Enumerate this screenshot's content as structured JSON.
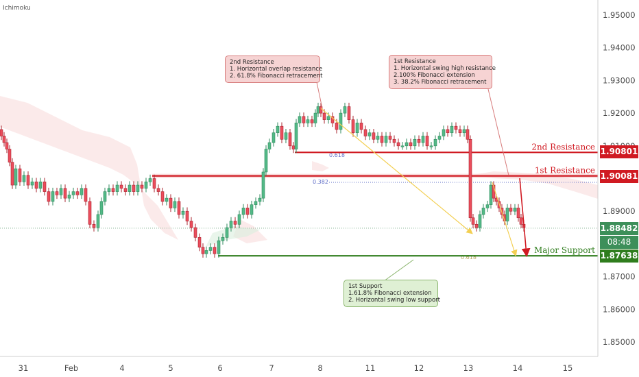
{
  "indicator_label": "Ichimoku",
  "chart_data": {
    "type": "candlestick",
    "y_axis": {
      "ticks": [
        "1.95000",
        "1.94000",
        "1.93000",
        "1.92000",
        "1.91000",
        "1.89000",
        "1.87000",
        "1.86000",
        "1.85000"
      ],
      "range": [
        1.844,
        1.955
      ]
    },
    "x_axis": {
      "ticks": [
        "31",
        "Feb",
        "4",
        "5",
        "6",
        "7",
        "8",
        "11",
        "12",
        "13",
        "14",
        "15"
      ]
    },
    "levels": [
      {
        "name": "2nd Resistance",
        "price": "1.90801",
        "value": 1.90801,
        "color": "#d01a22"
      },
      {
        "name": "1st Resistance",
        "price": "1.90081",
        "value": 1.90081,
        "color": "#d01a22"
      },
      {
        "name": "Major Support",
        "price": "1.87638",
        "value": 1.87638,
        "color": "#2f7d1d"
      }
    ],
    "current_price": {
      "price": "1.88482",
      "value": 1.88482,
      "color": "#2e8b57"
    },
    "countdown": "08:48",
    "fib_labels": [
      "0.618",
      "0.382",
      "0.618"
    ],
    "callouts": [
      {
        "kind": "resistance",
        "lines": [
          "2nd Resistance",
          "1. Horizontal overlap resistance",
          "2. 61.8% Fibonacci retracement"
        ]
      },
      {
        "kind": "resistance",
        "lines": [
          "1st Resistance",
          "1. Horizontal swing high resistance",
          "2.100% Fibonacci extension",
          "3. 38.2% Fibonacci retracement"
        ]
      },
      {
        "kind": "support",
        "lines": [
          "1st Support",
          "1.61.8% Fibonacci extension",
          "2. Horizontal swing low support"
        ]
      }
    ],
    "price_path": [
      [
        0,
        1.915
      ],
      [
        4,
        1.913
      ],
      [
        8,
        1.911
      ],
      [
        12,
        1.909
      ],
      [
        16,
        1.905
      ],
      [
        20,
        1.898
      ],
      [
        26,
        1.903
      ],
      [
        32,
        1.899
      ],
      [
        38,
        1.901
      ],
      [
        44,
        1.898
      ],
      [
        50,
        1.899
      ],
      [
        56,
        1.897
      ],
      [
        62,
        1.899
      ],
      [
        68,
        1.896
      ],
      [
        74,
        1.893
      ],
      [
        80,
        1.896
      ],
      [
        86,
        1.895
      ],
      [
        92,
        1.897
      ],
      [
        98,
        1.894
      ],
      [
        104,
        1.895
      ],
      [
        110,
        1.896
      ],
      [
        116,
        1.895
      ],
      [
        122,
        1.897
      ],
      [
        128,
        1.893
      ],
      [
        134,
        1.886
      ],
      [
        140,
        1.885
      ],
      [
        146,
        1.889
      ],
      [
        150,
        1.893
      ],
      [
        156,
        1.896
      ],
      [
        162,
        1.897
      ],
      [
        168,
        1.896
      ],
      [
        174,
        1.898
      ],
      [
        180,
        1.897
      ],
      [
        186,
        1.896
      ],
      [
        192,
        1.898
      ],
      [
        198,
        1.896
      ],
      [
        204,
        1.898
      ],
      [
        210,
        1.897
      ],
      [
        216,
        1.899
      ],
      [
        222,
        1.9
      ],
      [
        228,
        1.897
      ],
      [
        234,
        1.896
      ],
      [
        240,
        1.893
      ],
      [
        246,
        1.894
      ],
      [
        252,
        1.891
      ],
      [
        258,
        1.893
      ],
      [
        264,
        1.889
      ],
      [
        270,
        1.89
      ],
      [
        276,
        1.887
      ],
      [
        282,
        1.885
      ],
      [
        288,
        1.882
      ],
      [
        294,
        1.879
      ],
      [
        298,
        1.877
      ],
      [
        304,
        1.878
      ],
      [
        310,
        1.879
      ],
      [
        316,
        1.877
      ],
      [
        322,
        1.881
      ],
      [
        328,
        1.882
      ],
      [
        334,
        1.885
      ],
      [
        340,
        1.887
      ],
      [
        346,
        1.886
      ],
      [
        352,
        1.889
      ],
      [
        358,
        1.891
      ],
      [
        364,
        1.889
      ],
      [
        370,
        1.892
      ],
      [
        376,
        1.893
      ],
      [
        382,
        1.894
      ],
      [
        386,
        1.902
      ],
      [
        390,
        1.909
      ],
      [
        396,
        1.911
      ],
      [
        402,
        1.914
      ],
      [
        408,
        1.916
      ],
      [
        414,
        1.912
      ],
      [
        420,
        1.914
      ],
      [
        426,
        1.91
      ],
      [
        430,
        1.909
      ],
      [
        434,
        1.917
      ],
      [
        440,
        1.919
      ],
      [
        446,
        1.917
      ],
      [
        452,
        1.918
      ],
      [
        458,
        1.917
      ],
      [
        462,
        1.92
      ],
      [
        466,
        1.922
      ],
      [
        470,
        1.92
      ],
      [
        476,
        1.918
      ],
      [
        482,
        1.919
      ],
      [
        488,
        1.917
      ],
      [
        494,
        1.915
      ],
      [
        500,
        1.92
      ],
      [
        506,
        1.922
      ],
      [
        512,
        1.918
      ],
      [
        518,
        1.914
      ],
      [
        524,
        1.917
      ],
      [
        530,
        1.915
      ],
      [
        536,
        1.913
      ],
      [
        542,
        1.914
      ],
      [
        548,
        1.912
      ],
      [
        554,
        1.913
      ],
      [
        560,
        1.911
      ],
      [
        566,
        1.913
      ],
      [
        572,
        1.912
      ],
      [
        578,
        1.911
      ],
      [
        584,
        1.91
      ],
      [
        590,
        1.91
      ],
      [
        596,
        1.911
      ],
      [
        602,
        1.91
      ],
      [
        608,
        1.912
      ],
      [
        614,
        1.911
      ],
      [
        620,
        1.913
      ],
      [
        626,
        1.91
      ],
      [
        632,
        1.91
      ],
      [
        638,
        1.912
      ],
      [
        644,
        1.913
      ],
      [
        650,
        1.915
      ],
      [
        656,
        1.914
      ],
      [
        662,
        1.916
      ],
      [
        668,
        1.915
      ],
      [
        674,
        1.914
      ],
      [
        680,
        1.915
      ],
      [
        684,
        1.912
      ],
      [
        688,
        1.888
      ],
      [
        692,
        1.886
      ],
      [
        698,
        1.885
      ],
      [
        702,
        1.889
      ],
      [
        708,
        1.891
      ],
      [
        714,
        1.892
      ],
      [
        718,
        1.898
      ],
      [
        722,
        1.894
      ],
      [
        726,
        1.893
      ],
      [
        730,
        1.891
      ],
      [
        734,
        1.889
      ],
      [
        738,
        1.887
      ],
      [
        742,
        1.891
      ],
      [
        748,
        1.89
      ],
      [
        754,
        1.891
      ],
      [
        758,
        1.888
      ],
      [
        762,
        1.886
      ],
      [
        766,
        1.885
      ]
    ]
  }
}
